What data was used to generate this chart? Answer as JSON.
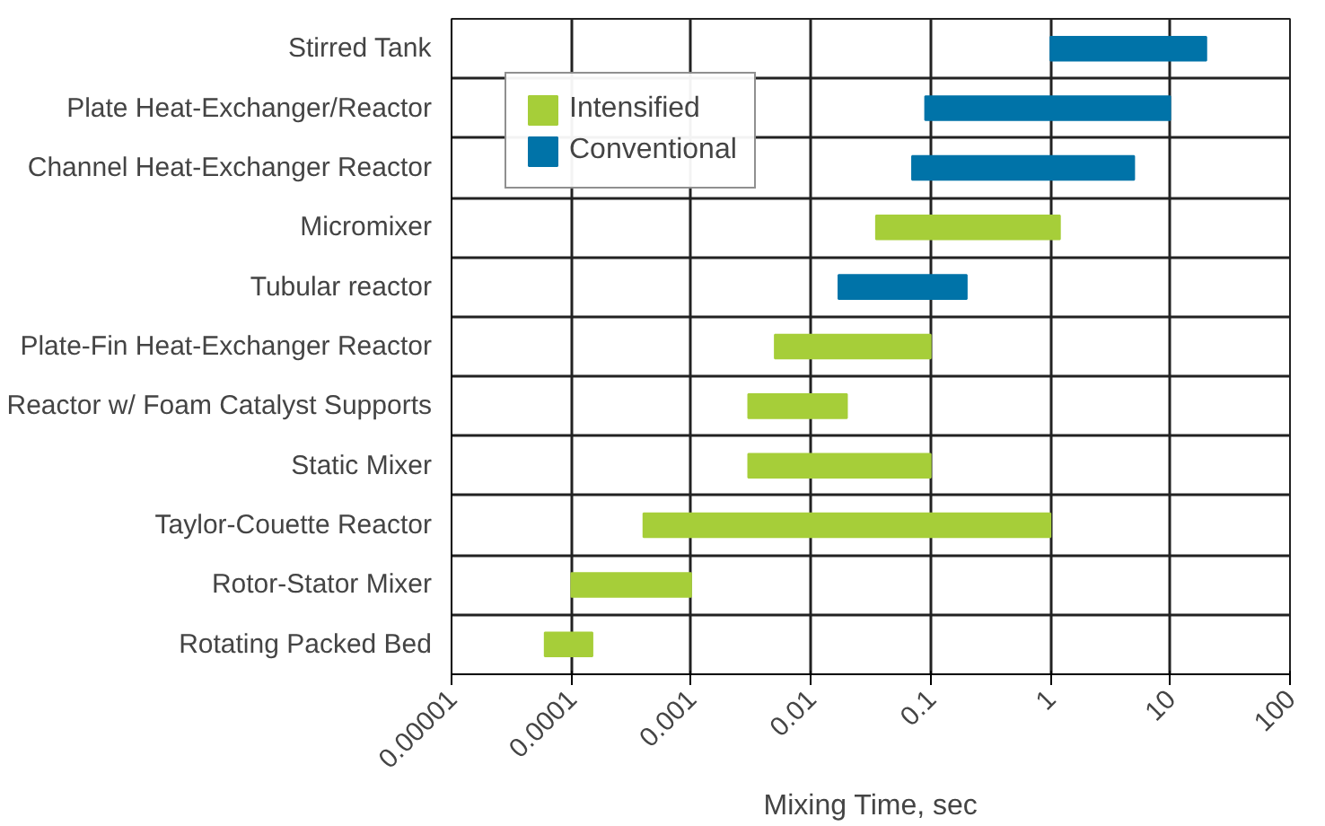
{
  "chart_data": {
    "type": "bar",
    "orientation": "horizontal",
    "xlabel": "Mixing Time, sec",
    "log": "x",
    "grid": true,
    "legend": "top left",
    "categories": [
      "Stirred Tank",
      "Plate Heat-Exchanger/Reactor",
      "Channel Heat-Exchanger Reactor",
      "Micromixer",
      "Tubular reactor",
      "Plate-Fin Heat-Exchanger Reactor",
      "Reactor w/ Foam Catalyst Supports",
      "Static Mixer",
      "Taylor-Couette Reactor",
      "Rotor-Stator Mixer",
      "Rotating Packed Bed"
    ],
    "xlim": [
      1e-05,
      100
    ],
    "xticks": [
      {
        "value": 1e-05,
        "label": "0.00001"
      },
      {
        "value": 0.0001,
        "label": "0.0001"
      },
      {
        "value": 0.001,
        "label": "0.001"
      },
      {
        "value": 0.01,
        "label": "0.01"
      },
      {
        "value": 0.1,
        "label": "0.1"
      },
      {
        "value": 1,
        "label": "1"
      },
      {
        "value": 10,
        "label": "10"
      },
      {
        "value": 100,
        "label": "100"
      }
    ],
    "series": [
      {
        "name": "Intensified",
        "color": "#a6ce39",
        "base": [
          null,
          null,
          null,
          0.035,
          null,
          0.005,
          0.003,
          0.003,
          0.0004,
          0.0001,
          6e-05
        ],
        "values": [
          null,
          null,
          null,
          1.165,
          null,
          0.095,
          0.017,
          0.097,
          0.9996,
          0.0009,
          9e-05
        ]
      },
      {
        "name": "Conventional",
        "color": "#0073a8",
        "base": [
          1,
          0.09,
          0.07,
          null,
          0.017,
          null,
          null,
          null,
          null,
          null,
          null
        ],
        "values": [
          19,
          9.91,
          4.93,
          null,
          0.183,
          null,
          null,
          null,
          null,
          null,
          null
        ]
      }
    ]
  }
}
